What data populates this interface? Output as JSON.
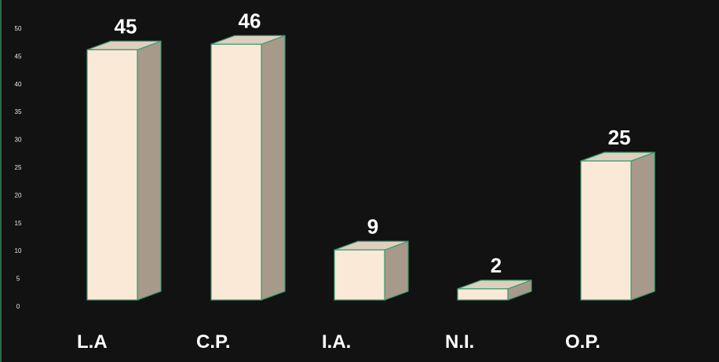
{
  "chart_data": {
    "type": "bar",
    "categories": [
      "L.A",
      "C.P.",
      "I.A.",
      "N.I.",
      "O.P."
    ],
    "values": [
      45,
      46,
      9,
      2,
      25
    ],
    "data_labels": [
      "45",
      "46",
      "9",
      "2",
      "25"
    ],
    "y_ticks": [
      "0",
      "5",
      "10",
      "15",
      "20",
      "25",
      "30",
      "35",
      "40",
      "45",
      "50"
    ],
    "ylim": [
      0,
      50
    ],
    "title": "",
    "xlabel": "",
    "ylabel": "",
    "grid": false,
    "legend": "none",
    "style": "3d-column"
  },
  "colors": {
    "background": "#121212",
    "bar_front": "#fae9d7",
    "bar_side": "#a79a8a",
    "bar_top": "#ddd0bf",
    "bar_edge": "#3d9a6e",
    "text": "#ffffff"
  }
}
